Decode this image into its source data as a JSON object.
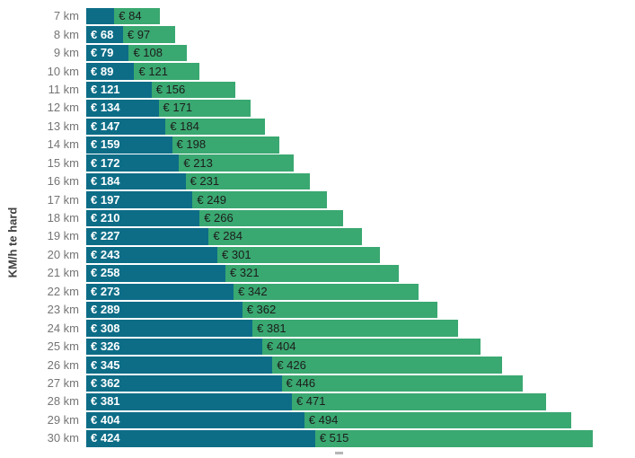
{
  "chart_data": {
    "type": "bar",
    "orientation": "horizontal",
    "stacked": true,
    "title": "",
    "xlabel": "",
    "ylabel": "KM/h te hard",
    "categories": [
      "7 km",
      "8 km",
      "9 km",
      "10 km",
      "11 km",
      "12 km",
      "13 km",
      "14 km",
      "15 km",
      "16 km",
      "17 km",
      "18 km",
      "19 km",
      "20 km",
      "21 km",
      "22 km",
      "23 km",
      "24 km",
      "25 km",
      "26 km",
      "27 km",
      "28 km",
      "29 km",
      "30 km"
    ],
    "xlim": [
      0,
      939
    ],
    "grid": false,
    "legend": "none",
    "series": [
      {
        "name": "dark-teal-segment",
        "color": "#0d6d87",
        "label_text_color": "#ffffff",
        "values": [
          52,
          68,
          79,
          89,
          121,
          134,
          147,
          159,
          172,
          184,
          197,
          210,
          227,
          243,
          258,
          273,
          289,
          308,
          326,
          345,
          362,
          381,
          404,
          424
        ],
        "labels": [
          "",
          "€ 68",
          "€ 79",
          "€ 89",
          "€ 121",
          "€ 134",
          "€ 147",
          "€ 159",
          "€ 172",
          "€ 184",
          "€ 197",
          "€ 210",
          "€ 227",
          "€ 243",
          "€ 258",
          "€ 273",
          "€ 289",
          "€ 308",
          "€ 326",
          "€ 345",
          "€ 362",
          "€ 381",
          "€ 404",
          "€ 424"
        ]
      },
      {
        "name": "green-segment",
        "color": "#3aa871",
        "label_text_color": "#1c1c1c",
        "values": [
          84,
          97,
          108,
          121,
          156,
          171,
          184,
          198,
          213,
          231,
          249,
          266,
          284,
          301,
          321,
          342,
          362,
          381,
          404,
          426,
          446,
          471,
          494,
          515
        ],
        "labels": [
          "€ 84",
          "€ 97",
          "€ 108",
          "€ 121",
          "€ 156",
          "€ 171",
          "€ 184",
          "€ 198",
          "€ 213",
          "€ 231",
          "€ 249",
          "€ 266",
          "€ 284",
          "€ 301",
          "€ 321",
          "€ 342",
          "€ 362",
          "€ 381",
          "€ 404",
          "€ 426",
          "€ 446",
          "€ 471",
          "€ 494",
          "€ 515"
        ]
      }
    ]
  },
  "colors": {
    "background": "#ffffff",
    "dark_bar": "#0d6d87",
    "green_bar": "#3aa871",
    "category_label": "#757575",
    "axis_title": "#404040"
  }
}
